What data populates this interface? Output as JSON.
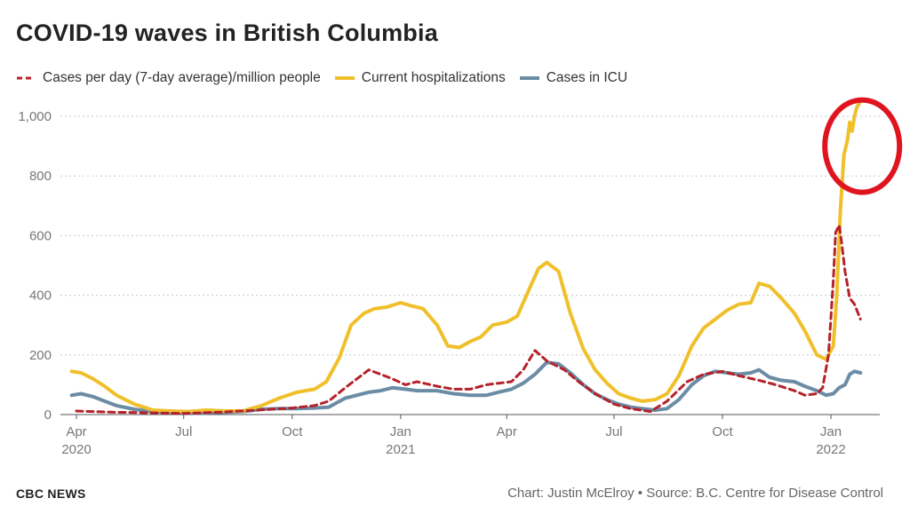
{
  "title": "COVID-19 waves in British Columbia",
  "legend": [
    {
      "label": "Cases per day (7-day average)/million people",
      "color": "#b5222a",
      "style": "dashed"
    },
    {
      "label": "Current hospitalizations",
      "color": "#f0c02b",
      "style": "solid"
    },
    {
      "label": "Cases in ICU",
      "color": "#6b8ca5",
      "style": "solid"
    }
  ],
  "footer": {
    "brand": "CBC NEWS",
    "credit": "Chart: Justin McElroy • Source: B.C. Centre for Disease Control"
  },
  "chart_data": {
    "type": "line",
    "ylim": [
      0,
      1000
    ],
    "yticks": [
      0,
      200,
      400,
      600,
      800,
      1000
    ],
    "ytick_labels": [
      "0",
      "200",
      "400",
      "600",
      "800",
      "1,000"
    ],
    "xlim": [
      "2020-03-25",
      "2022-01-28"
    ],
    "xticks": [
      {
        "date": "2020-04-01",
        "label": "Apr",
        "sublabel": "2020"
      },
      {
        "date": "2020-07-01",
        "label": "Jul",
        "sublabel": ""
      },
      {
        "date": "2020-10-01",
        "label": "Oct",
        "sublabel": ""
      },
      {
        "date": "2021-01-01",
        "label": "Jan",
        "sublabel": "2021"
      },
      {
        "date": "2021-04-01",
        "label": "Apr",
        "sublabel": ""
      },
      {
        "date": "2021-07-01",
        "label": "Jul",
        "sublabel": ""
      },
      {
        "date": "2021-10-01",
        "label": "Oct",
        "sublabel": ""
      },
      {
        "date": "2022-01-01",
        "label": "Jan",
        "sublabel": "2022"
      }
    ],
    "grid": "horizontal dotted",
    "legend_position": "top-left",
    "annotation": {
      "type": "circle",
      "color": "#e0141e",
      "at": {
        "x": "2022-01-20",
        "y": 900
      }
    },
    "series": [
      {
        "name": "Cases per day (7-day average)/million people",
        "color": "#b5222a",
        "style": "dashed",
        "x": [
          "2020-04-01",
          "2020-05-01",
          "2020-06-01",
          "2020-07-01",
          "2020-08-01",
          "2020-09-01",
          "2020-10-01",
          "2020-10-20",
          "2020-11-01",
          "2020-11-15",
          "2020-11-25",
          "2020-12-05",
          "2020-12-15",
          "2020-12-25",
          "2021-01-05",
          "2021-01-15",
          "2021-02-01",
          "2021-02-15",
          "2021-03-01",
          "2021-03-15",
          "2021-03-25",
          "2021-04-05",
          "2021-04-15",
          "2021-04-25",
          "2021-05-05",
          "2021-05-20",
          "2021-06-01",
          "2021-06-15",
          "2021-07-01",
          "2021-07-15",
          "2021-08-01",
          "2021-08-15",
          "2021-09-01",
          "2021-09-15",
          "2021-10-01",
          "2021-10-15",
          "2021-11-01",
          "2021-11-15",
          "2021-12-01",
          "2021-12-10",
          "2021-12-20",
          "2021-12-25",
          "2021-12-30",
          "2022-01-03",
          "2022-01-05",
          "2022-01-08",
          "2022-01-10",
          "2022-01-13",
          "2022-01-17",
          "2022-01-21",
          "2022-01-26"
        ],
        "y": [
          12,
          8,
          6,
          4,
          8,
          15,
          22,
          30,
          45,
          90,
          120,
          150,
          135,
          120,
          100,
          110,
          95,
          85,
          85,
          100,
          105,
          110,
          150,
          215,
          180,
          150,
          110,
          70,
          35,
          20,
          10,
          45,
          110,
          135,
          145,
          130,
          115,
          100,
          80,
          65,
          70,
          90,
          200,
          450,
          610,
          635,
          580,
          480,
          390,
          370,
          320
        ]
      },
      {
        "name": "Current hospitalizations",
        "color": "#f0c02b",
        "style": "solid",
        "x": [
          "2020-03-28",
          "2020-04-05",
          "2020-04-15",
          "2020-04-25",
          "2020-05-05",
          "2020-05-20",
          "2020-06-05",
          "2020-06-20",
          "2020-07-05",
          "2020-07-20",
          "2020-08-05",
          "2020-08-20",
          "2020-09-05",
          "2020-09-20",
          "2020-10-05",
          "2020-10-20",
          "2020-10-30",
          "2020-11-10",
          "2020-11-20",
          "2020-12-01",
          "2020-12-10",
          "2020-12-20",
          "2021-01-01",
          "2021-01-10",
          "2021-01-20",
          "2021-02-01",
          "2021-02-10",
          "2021-02-20",
          "2021-03-01",
          "2021-03-10",
          "2021-03-20",
          "2021-04-01",
          "2021-04-10",
          "2021-04-20",
          "2021-04-28",
          "2021-05-05",
          "2021-05-15",
          "2021-05-25",
          "2021-06-05",
          "2021-06-15",
          "2021-06-25",
          "2021-07-05",
          "2021-07-15",
          "2021-07-25",
          "2021-08-05",
          "2021-08-15",
          "2021-08-25",
          "2021-09-05",
          "2021-09-15",
          "2021-09-25",
          "2021-10-05",
          "2021-10-15",
          "2021-10-25",
          "2021-11-01",
          "2021-11-10",
          "2021-11-20",
          "2021-12-01",
          "2021-12-10",
          "2021-12-20",
          "2021-12-28",
          "2022-01-03",
          "2022-01-06",
          "2022-01-09",
          "2022-01-12",
          "2022-01-15",
          "2022-01-17",
          "2022-01-19",
          "2022-01-21",
          "2022-01-23",
          "2022-01-26"
        ],
        "y": [
          145,
          140,
          120,
          95,
          65,
          35,
          15,
          12,
          10,
          15,
          12,
          12,
          30,
          55,
          75,
          85,
          110,
          190,
          300,
          340,
          355,
          360,
          375,
          365,
          355,
          300,
          230,
          225,
          245,
          260,
          300,
          310,
          330,
          420,
          490,
          510,
          480,
          340,
          220,
          150,
          105,
          70,
          55,
          45,
          50,
          70,
          130,
          230,
          290,
          320,
          350,
          370,
          375,
          440,
          430,
          390,
          340,
          280,
          200,
          185,
          230,
          400,
          680,
          870,
          920,
          980,
          950,
          1000,
          1030,
          1050
        ]
      },
      {
        "name": "Cases in ICU",
        "color": "#6b8ca5",
        "style": "solid",
        "x": [
          "2020-03-28",
          "2020-04-05",
          "2020-04-15",
          "2020-04-25",
          "2020-05-05",
          "2020-05-20",
          "2020-06-05",
          "2020-06-20",
          "2020-07-05",
          "2020-07-20",
          "2020-08-05",
          "2020-08-20",
          "2020-09-05",
          "2020-09-20",
          "2020-10-05",
          "2020-10-20",
          "2020-11-01",
          "2020-11-15",
          "2020-11-25",
          "2020-12-05",
          "2020-12-15",
          "2020-12-25",
          "2021-01-05",
          "2021-01-15",
          "2021-02-01",
          "2021-02-15",
          "2021-03-01",
          "2021-03-15",
          "2021-03-25",
          "2021-04-05",
          "2021-04-15",
          "2021-04-25",
          "2021-05-05",
          "2021-05-15",
          "2021-05-25",
          "2021-06-05",
          "2021-06-15",
          "2021-06-25",
          "2021-07-05",
          "2021-07-15",
          "2021-07-25",
          "2021-08-05",
          "2021-08-15",
          "2021-08-25",
          "2021-09-05",
          "2021-09-15",
          "2021-09-25",
          "2021-10-05",
          "2021-10-15",
          "2021-10-25",
          "2021-11-01",
          "2021-11-10",
          "2021-11-20",
          "2021-12-01",
          "2021-12-10",
          "2021-12-20",
          "2021-12-28",
          "2022-01-03",
          "2022-01-08",
          "2022-01-13",
          "2022-01-17",
          "2022-01-21",
          "2022-01-26"
        ],
        "y": [
          65,
          70,
          60,
          45,
          30,
          18,
          10,
          8,
          5,
          5,
          8,
          10,
          18,
          20,
          20,
          22,
          25,
          55,
          65,
          75,
          80,
          90,
          85,
          80,
          80,
          70,
          65,
          65,
          75,
          85,
          105,
          135,
          175,
          170,
          140,
          100,
          70,
          50,
          35,
          25,
          20,
          15,
          20,
          50,
          100,
          130,
          145,
          140,
          135,
          140,
          150,
          125,
          115,
          110,
          95,
          80,
          65,
          70,
          90,
          100,
          135,
          145,
          140
        ]
      }
    ]
  }
}
